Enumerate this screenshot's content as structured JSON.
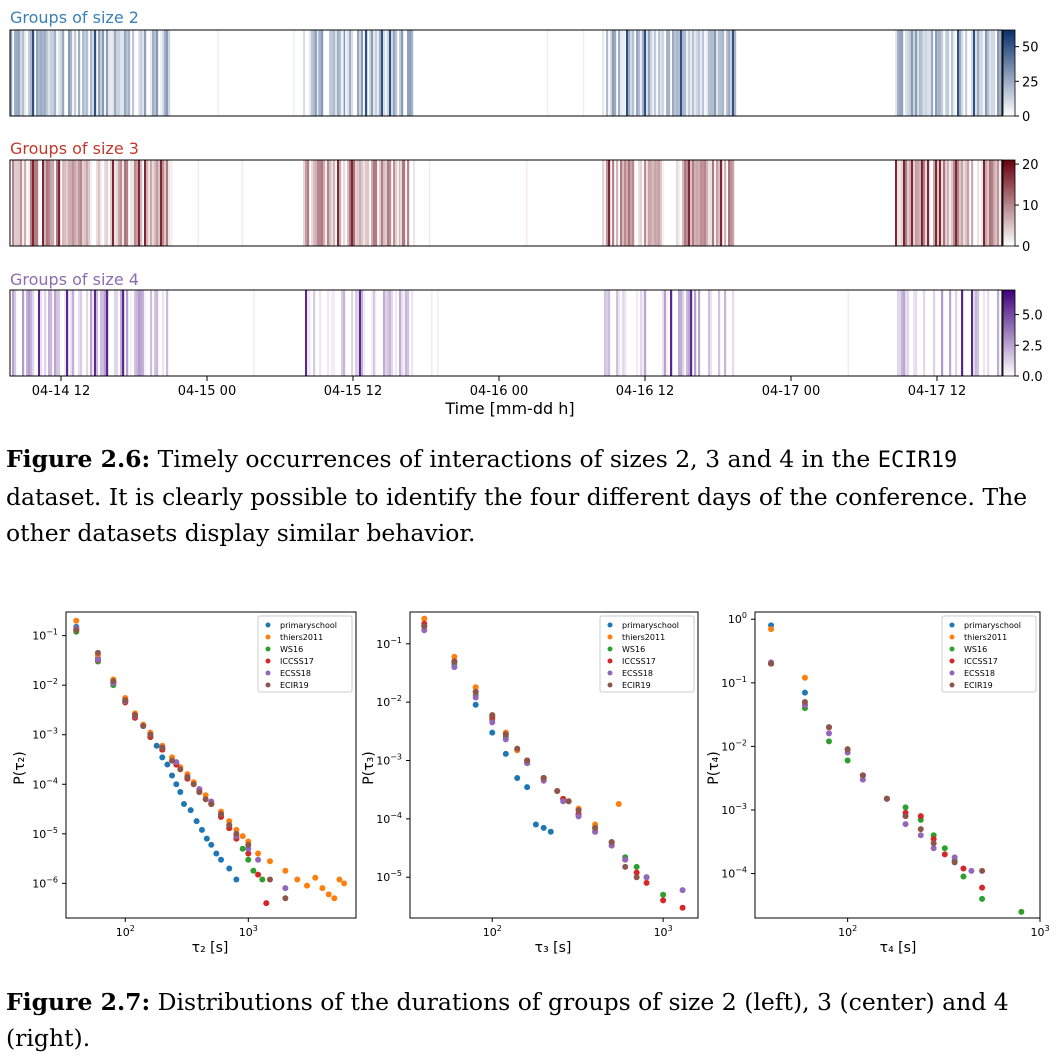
{
  "fig1": {
    "xlabel": "Time [mm-dd h]",
    "xticks": [
      "04-14 12",
      "04-15 00",
      "04-15 12",
      "04-16 00",
      "04-16 12",
      "04-17 00",
      "04-17 12"
    ],
    "panels": [
      {
        "title": "Groups of size 2",
        "color": "#3a7fb5",
        "cmap_dark": "#08306b",
        "cbar_ticks": [
          "50",
          "25",
          "0"
        ],
        "cbar_values": [
          50,
          25,
          0
        ],
        "cbar_max": 62
      },
      {
        "title": "Groups of size 3",
        "color": "#c0392b",
        "cmap_dark": "#67000d",
        "cbar_ticks": [
          "20",
          "10",
          "0"
        ],
        "cbar_values": [
          20,
          10,
          0
        ],
        "cbar_max": 21
      },
      {
        "title": "Groups of size 4",
        "color": "#8c6bb1",
        "cmap_dark": "#3f007d",
        "cbar_ticks": [
          "5.0",
          "2.5",
          "0.0"
        ],
        "cbar_values": [
          5,
          2.5,
          0
        ],
        "cbar_max": 7
      }
    ]
  },
  "caption1": {
    "label": "Figure 2.6:",
    "text_before": " Timely occurrences of interactions of sizes 2, 3 and 4 in the ",
    "dataset": "ECIR19",
    "text_after": " dataset. It is clearly possible to identify the four different days of the conference. The other datasets display similar behavior."
  },
  "fig2": {
    "legend": [
      {
        "name": "primaryschool",
        "color": "#1f77b4"
      },
      {
        "name": "thiers2011",
        "color": "#ff7f0e"
      },
      {
        "name": "WS16",
        "color": "#2ca02c"
      },
      {
        "name": "ICCSS17",
        "color": "#d62728"
      },
      {
        "name": "ECSS18",
        "color": "#9467bd"
      },
      {
        "name": "ECIR19",
        "color": "#8c564b"
      }
    ],
    "panels": [
      {
        "xlabel": "τ₂  [s]",
        "ylabel": "P(τ₂)"
      },
      {
        "xlabel": "τ₃  [s]",
        "ylabel": "P(τ₃)"
      },
      {
        "xlabel": "τ₄  [s]",
        "ylabel": "P(τ₄)"
      }
    ]
  },
  "caption2": {
    "label": "Figure 2.7:",
    "text": " Distributions of the durations of groups of size 2 (left), 3 (center) and 4 (right)."
  },
  "chart_data": [
    {
      "type": "heatmap",
      "title": "Groups of size 2",
      "xlabel": "Time [mm-dd h]",
      "x_ticks": [
        "04-14 12",
        "04-15 00",
        "04-15 12",
        "04-16 00",
        "04-16 12",
        "04-17 00",
        "04-17 12"
      ],
      "colorbar_ticks": [
        0,
        25,
        50
      ],
      "active_periods": [
        "04-14 morning–afternoon",
        "04-15 morning–afternoon",
        "04-16 morning–afternoon",
        "04-17 morning"
      ]
    },
    {
      "type": "heatmap",
      "title": "Groups of size 3",
      "xlabel": "Time [mm-dd h]",
      "x_ticks": [
        "04-14 12",
        "04-15 00",
        "04-15 12",
        "04-16 00",
        "04-16 12",
        "04-17 00",
        "04-17 12"
      ],
      "colorbar_ticks": [
        0,
        10,
        20
      ]
    },
    {
      "type": "heatmap",
      "title": "Groups of size 4",
      "xlabel": "Time [mm-dd h]",
      "x_ticks": [
        "04-14 12",
        "04-15 00",
        "04-15 12",
        "04-16 00",
        "04-16 12",
        "04-17 00",
        "04-17 12"
      ],
      "colorbar_ticks": [
        0.0,
        2.5,
        5.0
      ]
    },
    {
      "type": "scatter",
      "xlabel": "τ₂  [s]",
      "ylabel": "P(τ₂)",
      "xscale": "log",
      "yscale": "log",
      "xlim": [
        33,
        7500
      ],
      "ylim": [
        2e-07,
        0.3
      ],
      "legend_position": "top-right",
      "series": [
        {
          "name": "primaryschool",
          "x": [
            40,
            60,
            80,
            100,
            120,
            140,
            160,
            180,
            200,
            220,
            240,
            260,
            280,
            300,
            340,
            380,
            420,
            460,
            500,
            550,
            600,
            700,
            800
          ],
          "y": [
            0.15,
            0.035,
            0.012,
            0.005,
            0.0025,
            0.0015,
            0.0009,
            0.0006,
            0.00035,
            0.00025,
            0.00015,
            0.0001,
            7e-05,
            4e-05,
            3e-05,
            1.8e-05,
            1.2e-05,
            8e-06,
            6e-06,
            4e-06,
            3e-06,
            2e-06,
            1.2e-06
          ]
        },
        {
          "name": "thiers2011",
          "x": [
            40,
            60,
            80,
            100,
            120,
            140,
            160,
            200,
            240,
            280,
            320,
            360,
            400,
            450,
            500,
            600,
            700,
            800,
            900,
            1000,
            1200,
            1500,
            2000,
            2500,
            3000,
            3500,
            4000,
            4500,
            5000,
            5500,
            6000
          ],
          "y": [
            0.2,
            0.04,
            0.013,
            0.0055,
            0.0027,
            0.0016,
            0.0011,
            0.0006,
            0.00035,
            0.00022,
            0.00016,
            0.00011,
            8e-05,
            6e-05,
            4e-05,
            2.8e-05,
            1.8e-05,
            1.2e-05,
            9e-06,
            7e-06,
            4e-06,
            2.8e-06,
            1.8e-06,
            1.2e-06,
            9e-07,
            1.3e-06,
            8e-07,
            6e-07,
            5e-07,
            1.2e-06,
            1e-06
          ]
        },
        {
          "name": "WS16",
          "x": [
            40,
            60,
            80,
            100,
            120,
            160,
            200,
            260,
            320,
            400,
            500,
            600,
            700,
            800,
            900,
            1000,
            1100,
            1300
          ],
          "y": [
            0.12,
            0.03,
            0.01,
            0.0045,
            0.0022,
            0.0009,
            0.0005,
            0.00025,
            0.00013,
            7e-05,
            4e-05,
            2.2e-05,
            1.3e-05,
            8e-06,
            5e-06,
            3e-06,
            1.8e-06,
            1.2e-06
          ]
        },
        {
          "name": "ICCSS17",
          "x": [
            40,
            60,
            80,
            100,
            120,
            160,
            200,
            260,
            320,
            400,
            500,
            600,
            700,
            800,
            1000,
            1200,
            1400
          ],
          "y": [
            0.13,
            0.032,
            0.011,
            0.0045,
            0.0022,
            0.0009,
            0.0005,
            0.00025,
            0.00013,
            7e-05,
            4e-05,
            2.2e-05,
            1.3e-05,
            8e-06,
            4e-06,
            1.5e-06,
            4e-07
          ]
        },
        {
          "name": "ECSS18",
          "x": [
            40,
            60,
            80,
            100,
            120,
            160,
            200,
            260,
            320,
            400,
            500,
            600,
            700,
            800,
            1000,
            1200,
            2000
          ],
          "y": [
            0.14,
            0.033,
            0.011,
            0.0048,
            0.0024,
            0.001,
            0.00055,
            0.00028,
            0.00014,
            8e-05,
            4.5e-05,
            2.5e-05,
            1.5e-05,
            9e-06,
            5e-06,
            3e-06,
            8e-07
          ]
        },
        {
          "name": "ECIR19",
          "x": [
            40,
            60,
            80,
            100,
            120,
            140,
            160,
            200,
            240,
            280,
            320,
            360,
            400,
            450,
            500,
            600,
            700,
            800,
            1000,
            1500,
            2000
          ],
          "y": [
            0.13,
            0.045,
            0.012,
            0.005,
            0.0025,
            0.0015,
            0.001,
            0.00055,
            0.0003,
            0.0002,
            0.00014,
            0.0001,
            7e-05,
            5e-05,
            4e-05,
            2.5e-05,
            1.5e-05,
            1e-05,
            6e-06,
            1.2e-06,
            5e-07
          ]
        }
      ]
    },
    {
      "type": "scatter",
      "xlabel": "τ₃  [s]",
      "ylabel": "P(τ₃)",
      "xscale": "log",
      "yscale": "log",
      "xlim": [
        33,
        1600
      ],
      "ylim": [
        2e-06,
        0.35
      ],
      "legend_position": "top-right",
      "series": [
        {
          "name": "primaryschool",
          "x": [
            40,
            60,
            80,
            100,
            120,
            140,
            160,
            180,
            200,
            220
          ],
          "y": [
            0.2,
            0.04,
            0.009,
            0.003,
            0.0013,
            0.0005,
            0.00035,
            8e-05,
            7e-05,
            6e-05
          ]
        },
        {
          "name": "thiers2011",
          "x": [
            40,
            60,
            80,
            100,
            120,
            140,
            160,
            200,
            240,
            280,
            320,
            400,
            500,
            550
          ],
          "y": [
            0.27,
            0.06,
            0.018,
            0.006,
            0.003,
            0.0015,
            0.001,
            0.0005,
            0.0003,
            0.0002,
            0.00015,
            8e-05,
            4e-05,
            0.00018
          ]
        },
        {
          "name": "WS16",
          "x": [
            40,
            60,
            80,
            100,
            120,
            160,
            200,
            260,
            320,
            400,
            500,
            600,
            700,
            800,
            1000
          ],
          "y": [
            0.2,
            0.045,
            0.013,
            0.005,
            0.0025,
            0.0009,
            0.0005,
            0.00022,
            0.00012,
            7e-05,
            4e-05,
            2.2e-05,
            1.5e-05,
            1e-05,
            5e-06
          ]
        },
        {
          "name": "ICCSS17",
          "x": [
            40,
            60,
            80,
            100,
            120,
            160,
            200,
            260,
            320,
            400,
            500,
            600,
            700,
            800,
            1000,
            1300
          ],
          "y": [
            0.22,
            0.05,
            0.015,
            0.0055,
            0.0028,
            0.001,
            0.0005,
            0.00022,
            0.00012,
            6e-05,
            3.5e-05,
            2e-05,
            1.2e-05,
            8e-06,
            4e-06,
            3e-06
          ]
        },
        {
          "name": "ECSS18",
          "x": [
            40,
            60,
            80,
            100,
            120,
            160,
            200,
            260,
            320,
            400,
            500,
            600,
            800,
            1300
          ],
          "y": [
            0.17,
            0.04,
            0.012,
            0.0045,
            0.0023,
            0.0009,
            0.00045,
            0.0002,
            0.00011,
            6e-05,
            3.5e-05,
            2e-05,
            1e-05,
            6e-06
          ]
        },
        {
          "name": "ECIR19",
          "x": [
            40,
            60,
            80,
            100,
            120,
            140,
            160,
            200,
            240,
            280,
            320,
            400,
            500,
            600,
            700
          ],
          "y": [
            0.2,
            0.05,
            0.015,
            0.006,
            0.0028,
            0.0016,
            0.001,
            0.0005,
            0.0003,
            0.0002,
            0.00014,
            7e-05,
            4e-05,
            1.5e-05,
            1e-05
          ]
        }
      ]
    },
    {
      "type": "scatter",
      "xlabel": "τ₄  [s]",
      "ylabel": "P(τ₄)",
      "xscale": "log",
      "yscale": "log",
      "xlim": [
        33,
        1000
      ],
      "ylim": [
        2e-05,
        1.3
      ],
      "legend_position": "top-right",
      "series": [
        {
          "name": "primaryschool",
          "x": [
            40,
            60
          ],
          "y": [
            0.8,
            0.07
          ]
        },
        {
          "name": "thiers2011",
          "x": [
            40,
            60
          ],
          "y": [
            0.7,
            0.12
          ]
        },
        {
          "name": "WS16",
          "x": [
            40,
            60,
            80,
            100,
            120,
            160,
            200,
            240,
            280,
            320,
            360,
            400,
            500,
            800
          ],
          "y": [
            0.2,
            0.04,
            0.012,
            0.006,
            0.0035,
            0.0015,
            0.0011,
            0.0007,
            0.0004,
            0.00025,
            0.00016,
            9e-05,
            4e-05,
            2.5e-05
          ]
        },
        {
          "name": "ICCSS17",
          "x": [
            40,
            60,
            80,
            100,
            120,
            160,
            200,
            240,
            280,
            320,
            400,
            500
          ],
          "y": [
            0.2,
            0.045,
            0.02,
            0.009,
            0.0035,
            0.0015,
            0.0009,
            0.0008,
            0.00035,
            0.0002,
            0.00012,
            6e-05
          ]
        },
        {
          "name": "ECSS18",
          "x": [
            40,
            60,
            80,
            100,
            120,
            160,
            200,
            240,
            280,
            360,
            440
          ],
          "y": [
            0.21,
            0.045,
            0.016,
            0.008,
            0.003,
            0.0015,
            0.0006,
            0.0004,
            0.00025,
            0.00018,
            0.00011
          ]
        },
        {
          "name": "ECIR19",
          "x": [
            40,
            60,
            80,
            100,
            120,
            160,
            200,
            240,
            280,
            360,
            500
          ],
          "y": [
            0.2,
            0.05,
            0.02,
            0.009,
            0.0035,
            0.0015,
            0.0008,
            0.0005,
            0.0003,
            0.00015,
            0.00011
          ]
        }
      ]
    }
  ]
}
